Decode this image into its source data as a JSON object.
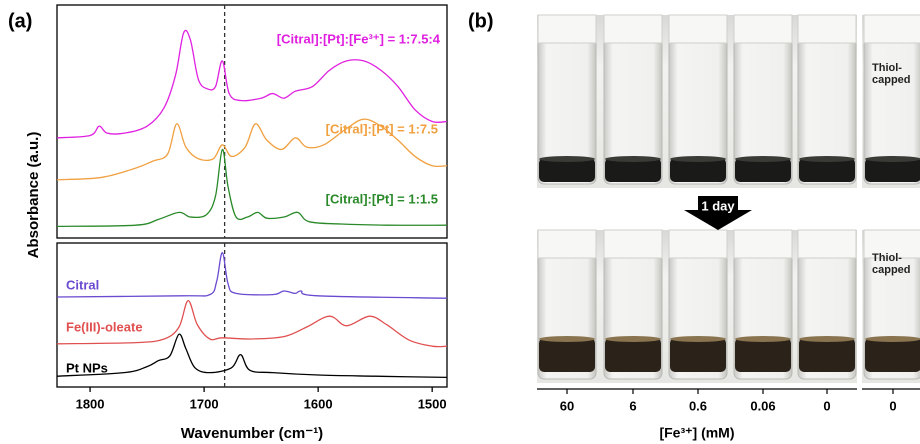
{
  "chart_data": [
    {
      "type": "line",
      "panel_label": "(a)",
      "ylabel": "Absorbance (a.u.)",
      "xlim": [
        1829,
        1487
      ],
      "ylim": [
        0,
        10
      ],
      "vline": 1682,
      "series": [
        {
          "name": "[Citral]:[Pt]:[Fe³⁺] = 1:7.5:4",
          "color": "#e020e0",
          "x": [
            1829,
            1800,
            1792,
            1785,
            1770,
            1750,
            1735,
            1725,
            1718,
            1712,
            1705,
            1697,
            1690,
            1684,
            1678,
            1668,
            1650,
            1640,
            1630,
            1620,
            1605,
            1590,
            1575,
            1560,
            1545,
            1530,
            1515,
            1500,
            1487
          ],
          "values": [
            4.3,
            4.4,
            4.8,
            4.5,
            4.5,
            4.8,
            5.6,
            7.0,
            8.8,
            8.5,
            6.8,
            6.4,
            6.5,
            7.6,
            6.2,
            5.9,
            6.0,
            6.2,
            6.0,
            6.3,
            6.5,
            7.2,
            7.6,
            7.6,
            7.2,
            6.5,
            5.5,
            5.0,
            5.0
          ]
        },
        {
          "name": "[Citral]:[Pt] = 1:7.5",
          "color": "#f0a040",
          "x": [
            1829,
            1790,
            1760,
            1745,
            1732,
            1724,
            1716,
            1705,
            1692,
            1684,
            1676,
            1664,
            1655,
            1645,
            1632,
            1620,
            1610,
            1595,
            1575,
            1560,
            1545,
            1530,
            1515,
            1500,
            1487
          ],
          "values": [
            2.5,
            2.6,
            3.0,
            3.3,
            3.6,
            4.9,
            3.9,
            3.4,
            3.4,
            4.0,
            3.5,
            3.9,
            4.9,
            4.2,
            3.8,
            4.3,
            3.9,
            4.0,
            4.7,
            5.1,
            4.8,
            4.2,
            3.5,
            3.1,
            3.1
          ]
        },
        {
          "name": "[Citral]:[Pt] = 1:1.5",
          "color": "#2a8a2a",
          "x": [
            1829,
            1760,
            1740,
            1722,
            1712,
            1698,
            1690,
            1684,
            1679,
            1672,
            1662,
            1653,
            1645,
            1630,
            1618,
            1608,
            1580,
            1540,
            1487
          ],
          "values": [
            0.5,
            0.55,
            0.8,
            1.1,
            0.9,
            1.0,
            1.8,
            3.8,
            2.2,
            0.9,
            0.9,
            1.1,
            0.85,
            0.9,
            1.1,
            0.7,
            0.6,
            0.55,
            0.55
          ]
        }
      ]
    },
    {
      "type": "line",
      "xlabel": "Wavenumber (cm⁻¹)",
      "xlim": [
        1829,
        1487
      ],
      "ylim": [
        0,
        6
      ],
      "vline": 1682,
      "xticks": [
        1800,
        1700,
        1600,
        1500
      ],
      "series": [
        {
          "name": "Citral",
          "color": "#6a4ad0",
          "x": [
            1829,
            1720,
            1695,
            1689,
            1684,
            1679,
            1672,
            1640,
            1630,
            1620,
            1615,
            1600,
            1487
          ],
          "values": [
            3.75,
            3.8,
            3.85,
            4.4,
            5.6,
            4.3,
            3.9,
            3.85,
            4.0,
            3.9,
            4.0,
            3.8,
            3.7
          ]
        },
        {
          "name": "Fe(III)-oleate",
          "color": "#e05050",
          "x": [
            1829,
            1760,
            1735,
            1722,
            1714,
            1706,
            1695,
            1684,
            1660,
            1630,
            1610,
            1590,
            1575,
            1555,
            1540,
            1520,
            1500,
            1487
          ],
          "values": [
            1.8,
            1.85,
            2.0,
            2.5,
            3.6,
            2.6,
            2.0,
            2.05,
            2.0,
            2.1,
            2.5,
            2.95,
            2.55,
            2.95,
            2.6,
            1.95,
            1.7,
            1.7
          ]
        },
        {
          "name": "Pt NPs",
          "color": "#000000",
          "x": [
            1829,
            1770,
            1750,
            1740,
            1730,
            1722,
            1716,
            1708,
            1695,
            1676,
            1668,
            1660,
            1640,
            1600,
            1550,
            1487
          ],
          "values": [
            0.45,
            0.6,
            0.85,
            1.1,
            1.3,
            2.2,
            1.6,
            0.8,
            0.6,
            0.8,
            1.35,
            0.7,
            0.6,
            0.5,
            0.45,
            0.4
          ]
        }
      ]
    }
  ],
  "panel_b": {
    "panel_label": "(b)",
    "annotation": "1 day",
    "inset_label": "Thiol-capped",
    "categories": [
      "60",
      "6",
      "0.6",
      "0.06",
      "0",
      "0"
    ],
    "xlabel": "[Fe³⁺] (mM)"
  }
}
